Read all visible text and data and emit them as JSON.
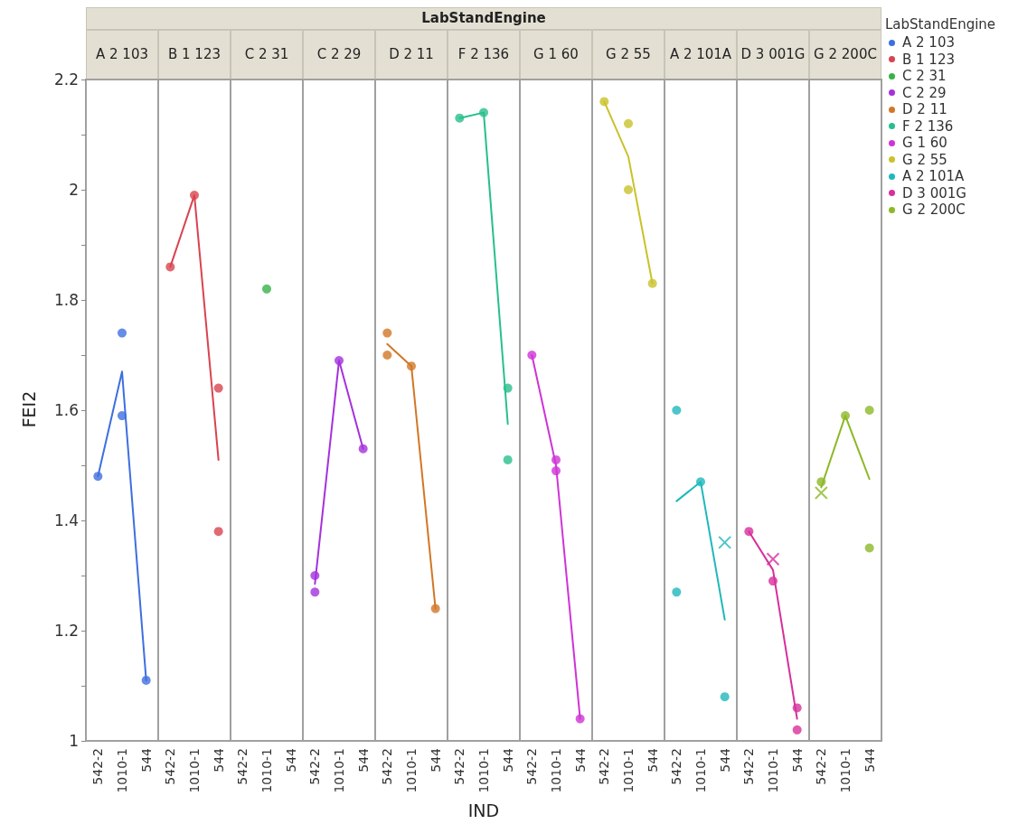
{
  "chart_data": [
    {
      "type": "scatter",
      "title": "A 2 103",
      "ylabel": "FEI2",
      "categories": [
        "542-2",
        "1010-1",
        "544"
      ],
      "ylim": [
        1.0,
        2.2
      ],
      "yticks": [
        1.0,
        {
          "value": 1.1,
          "label": null
        },
        1.2,
        {
          "value": 1.3,
          "label": null
        },
        1.4,
        {
          "value": 1.5,
          "label": null
        },
        1.6,
        {
          "value": 1.7,
          "label": null
        },
        1.8,
        {
          "value": 1.9,
          "label": null
        },
        2.0,
        {
          "value": 2.1,
          "label": null
        },
        2.2
      ],
      "grid": false,
      "legend": "right",
      "marker": "circle",
      "series": [
        {
          "name": "A 2 103",
          "color": "#3e6fe0",
          "x": [
            "542-2",
            "1010-1",
            "1010-1",
            "544"
          ],
          "values": [
            1.48,
            1.74,
            1.59,
            1.11
          ]
        },
        {
          "type": "line",
          "marker": "none",
          "color": "#3e6fe0",
          "values": [
            1.48,
            1.67,
            1.11
          ]
        }
      ]
    },
    {
      "type": "scatter",
      "title": "B 1 123",
      "categories": [
        "542-2",
        "1010-1",
        "544"
      ],
      "ylim": [
        1.0,
        2.2
      ],
      "tick_labels": "x",
      "grid": false,
      "legend": "right",
      "marker": "circle",
      "series": [
        {
          "name": "B 1 123",
          "color": "#d9434f",
          "x": [
            "542-2",
            "1010-1",
            "544",
            "544"
          ],
          "values": [
            1.86,
            1.99,
            1.64,
            1.38
          ]
        },
        {
          "type": "line",
          "marker": "none",
          "color": "#d9434f",
          "values": [
            1.86,
            1.99,
            1.51
          ]
        }
      ]
    },
    {
      "type": "scatter",
      "title": "C 2 31",
      "categories": [
        "542-2",
        "1010-1",
        "544"
      ],
      "ylim": [
        1.0,
        2.2
      ],
      "tick_labels": "x",
      "grid": false,
      "legend": "right",
      "marker": "circle",
      "series": [
        {
          "name": "C 2 31",
          "color": "#38b247",
          "x": [
            "1010-1"
          ],
          "values": [
            1.82
          ]
        }
      ]
    },
    {
      "type": "scatter",
      "title": "C 2 29",
      "categories": [
        "542-2",
        "1010-1",
        "544"
      ],
      "ylim": [
        1.0,
        2.2
      ],
      "tick_labels": "x",
      "grid": false,
      "legend": "right",
      "marker": "circle",
      "series": [
        {
          "name": "C 2 29",
          "color": "#a431dd",
          "x": [
            "542-2",
            "542-2",
            "1010-1",
            "544"
          ],
          "values": [
            1.3,
            1.27,
            1.69,
            1.53
          ]
        },
        {
          "type": "line",
          "marker": "none",
          "color": "#a431dd",
          "values": [
            1.285,
            1.69,
            1.53
          ]
        }
      ]
    },
    {
      "type": "scatter",
      "title": "D 2 11",
      "categories": [
        "542-2",
        "1010-1",
        "544"
      ],
      "ylim": [
        1.0,
        2.2
      ],
      "tick_labels": "x",
      "grid": false,
      "legend": "right",
      "marker": "circle",
      "series": [
        {
          "name": "D 2 11",
          "color": "#d27726",
          "x": [
            "542-2",
            "542-2",
            "1010-1",
            "544"
          ],
          "values": [
            1.7,
            1.74,
            1.68,
            1.24
          ]
        },
        {
          "type": "line",
          "marker": "none",
          "color": "#d27726",
          "values": [
            1.72,
            1.68,
            1.24
          ]
        }
      ]
    },
    {
      "type": "scatter",
      "title": "F 2 136",
      "subtitle": "LabStandEngine",
      "xlabel": "IND",
      "categories": [
        "542-2",
        "1010-1",
        "544"
      ],
      "ylim": [
        1.0,
        2.2
      ],
      "tick_labels": "x",
      "grid": false,
      "legend": "right",
      "marker": "circle",
      "series": [
        {
          "name": "F 2 136",
          "color": "#27bf8c",
          "x": [
            "542-2",
            "1010-1",
            "544",
            "544"
          ],
          "values": [
            2.13,
            2.14,
            1.64,
            1.51
          ]
        },
        {
          "type": "line",
          "marker": "none",
          "color": "#27bf8c",
          "values": [
            2.13,
            2.14,
            1.575
          ]
        }
      ]
    },
    {
      "type": "scatter",
      "title": "G 1 60",
      "categories": [
        "542-2",
        "1010-1",
        "544"
      ],
      "ylim": [
        1.0,
        2.2
      ],
      "tick_labels": "x",
      "grid": false,
      "legend": "right",
      "marker": "circle",
      "series": [
        {
          "name": "G 1 60",
          "color": "#cf33d6",
          "x": [
            "542-2",
            "1010-1",
            "1010-1",
            "544"
          ],
          "values": [
            1.7,
            1.51,
            1.49,
            1.04
          ]
        },
        {
          "type": "line",
          "marker": "none",
          "color": "#cf33d6",
          "values": [
            1.7,
            1.5,
            1.04
          ]
        }
      ]
    },
    {
      "type": "scatter",
      "title": "G 2 55",
      "categories": [
        "542-2",
        "1010-1",
        "544"
      ],
      "ylim": [
        1.0,
        2.2
      ],
      "tick_labels": "x",
      "grid": false,
      "legend": "right",
      "marker": "circle",
      "series": [
        {
          "name": "G 2 55",
          "color": "#c9c22a",
          "x": [
            "542-2",
            "1010-1",
            "1010-1",
            "544"
          ],
          "values": [
            2.16,
            2.12,
            2.0,
            1.83
          ]
        },
        {
          "type": "line",
          "marker": "none",
          "color": "#c9c22a",
          "values": [
            2.16,
            2.06,
            1.83
          ]
        }
      ]
    },
    {
      "type": "scatter",
      "title": "A 2 101A",
      "categories": [
        "542-2",
        "1010-1",
        "544"
      ],
      "ylim": [
        1.0,
        2.2
      ],
      "tick_labels": "x",
      "grid": false,
      "legend": "right",
      "marker": "circle",
      "series": [
        {
          "name": "A 2 101A",
          "color": "#1fb8bc",
          "x": [
            "542-2",
            "542-2",
            "1010-1",
            "544"
          ],
          "values": [
            1.6,
            1.27,
            1.47,
            1.08
          ]
        },
        {
          "type": "scatter",
          "marker": "cross",
          "color": "#1fb8bc",
          "x": [
            "544"
          ],
          "values": [
            1.36
          ]
        },
        {
          "type": "line",
          "marker": "none",
          "color": "#1fb8bc",
          "values": [
            1.435,
            1.47,
            1.22
          ]
        }
      ]
    },
    {
      "type": "scatter",
      "title": "D 3 001G",
      "categories": [
        "542-2",
        "1010-1",
        "544"
      ],
      "ylim": [
        1.0,
        2.2
      ],
      "tick_labels": "x",
      "grid": false,
      "legend": "right",
      "marker": "circle",
      "series": [
        {
          "name": "D 3 001G",
          "color": "#d72f9b",
          "x": [
            "542-2",
            "1010-1",
            "544",
            "544"
          ],
          "values": [
            1.38,
            1.29,
            1.06,
            1.02
          ]
        },
        {
          "type": "scatter",
          "marker": "cross",
          "color": "#d72f9b",
          "x": [
            "1010-1"
          ],
          "values": [
            1.33
          ]
        },
        {
          "type": "line",
          "marker": "none",
          "color": "#d72f9b",
          "values": [
            1.38,
            1.31,
            1.04
          ]
        }
      ]
    },
    {
      "type": "scatter",
      "title": "G 2 200C",
      "legend_title": "LabStandEngine",
      "categories": [
        "542-2",
        "1010-1",
        "544"
      ],
      "ylim": [
        1.0,
        2.2
      ],
      "tick_labels": "x",
      "grid": false,
      "legend": "right",
      "marker": "circle",
      "series": [
        {
          "name": "G 2 200C",
          "color": "#8db827",
          "x": [
            "542-2",
            "1010-1",
            "544",
            "544"
          ],
          "values": [
            1.47,
            1.59,
            1.6,
            1.35
          ]
        },
        {
          "type": "scatter",
          "marker": "cross",
          "color": "#8db827",
          "x": [
            "542-2"
          ],
          "values": [
            1.45
          ]
        },
        {
          "type": "line",
          "marker": "none",
          "color": "#8db827",
          "values": [
            1.46,
            1.59,
            1.475
          ]
        }
      ]
    }
  ]
}
